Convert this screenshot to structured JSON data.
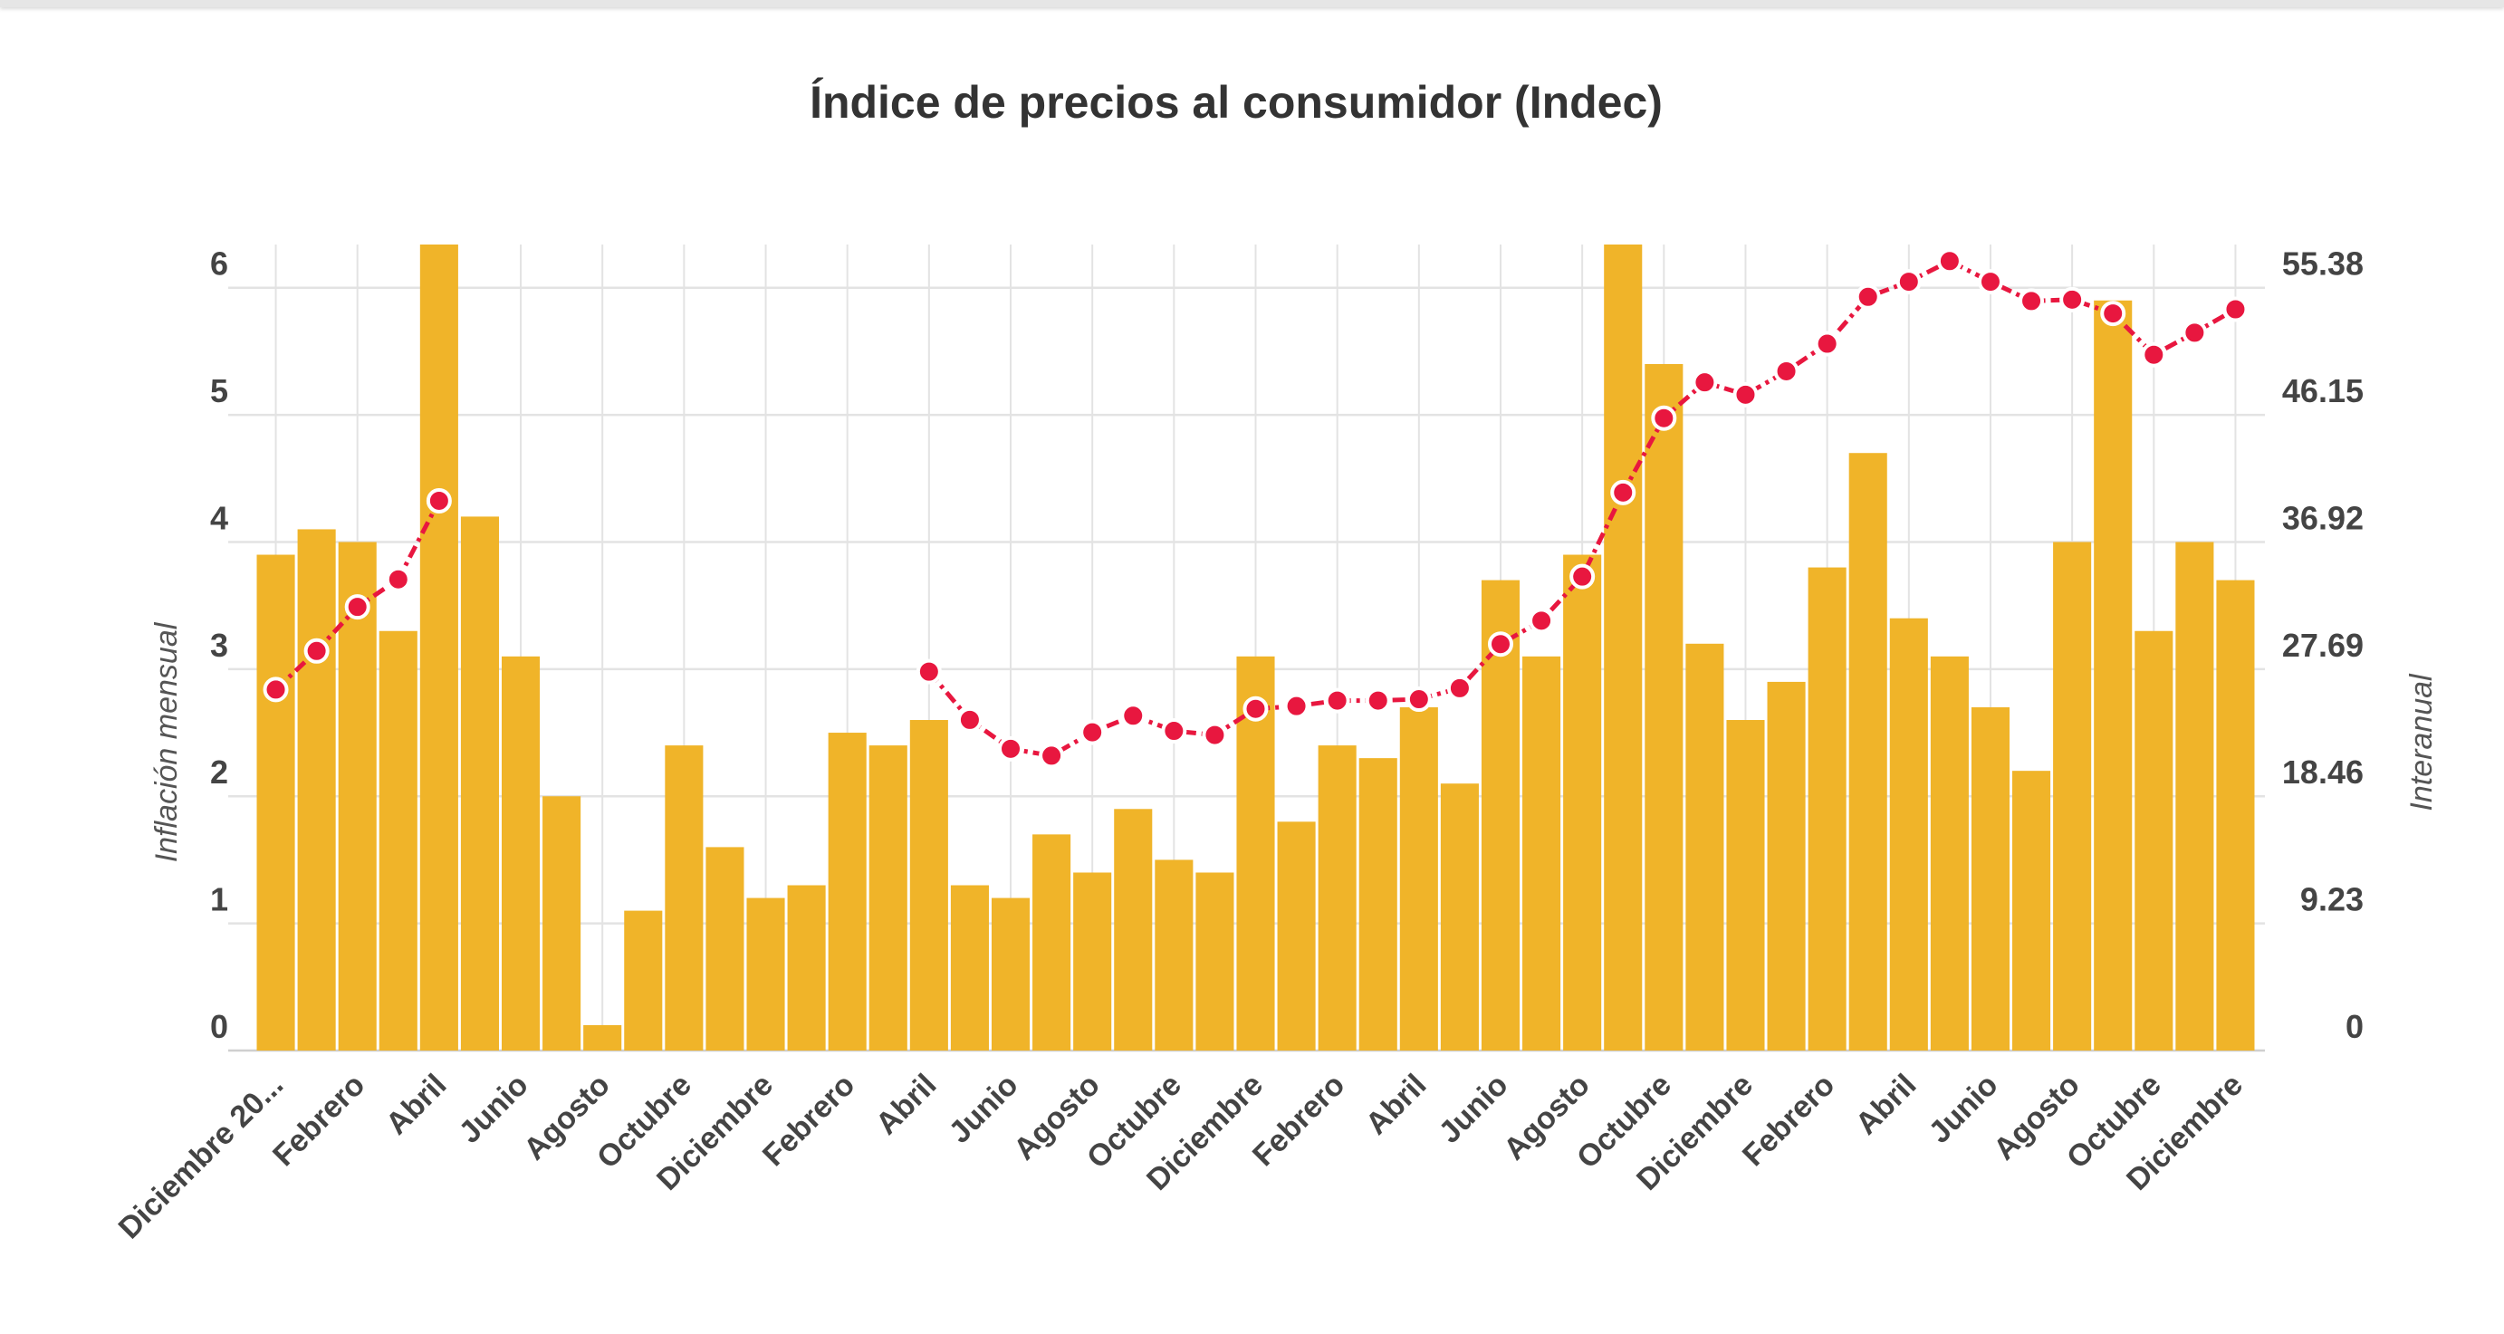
{
  "chart_data": {
    "type": "bar+line",
    "title": "Índice de precios al consumidor (Indec)",
    "ylabel_left": "Inflación mensual",
    "ylabel_right": "Interanual",
    "ylim_left": [
      0,
      6.34
    ],
    "ylim_right": [
      0,
      58.5
    ],
    "yticks_left": [
      "0",
      "1",
      "2",
      "3",
      "4",
      "5",
      "6"
    ],
    "yticks_right": [
      "0",
      "9.23",
      "18.46",
      "27.69",
      "36.92",
      "46.15",
      "55.38"
    ],
    "grid": true,
    "categories": [
      "Diciembre 20...",
      "",
      "Febrero",
      "",
      "Abril",
      "",
      "Junio",
      "",
      "Agosto",
      "",
      "Octubre",
      "",
      "Diciembre",
      "",
      "Febrero",
      "",
      "Abril",
      "",
      "Junio",
      "",
      "Agosto",
      "",
      "Octubre",
      "",
      "Diciembre",
      "",
      "Febrero",
      "",
      "Abril",
      "",
      "Junio",
      "",
      "Agosto",
      "",
      "Octubre",
      "",
      "Diciembre",
      "",
      "Febrero",
      "",
      "Abril",
      "",
      "Junio",
      "",
      "Agosto",
      "",
      "Octubre",
      "",
      "Diciembre"
    ],
    "series": [
      {
        "type": "bar",
        "color": "#f0b429",
        "values": [
          3.9,
          4.1,
          4.0,
          3.3,
          6.7,
          4.2,
          3.1,
          2.0,
          0.2,
          1.1,
          2.4,
          1.6,
          1.2,
          1.3,
          2.5,
          2.4,
          2.6,
          1.3,
          1.2,
          1.7,
          1.4,
          1.9,
          1.5,
          1.4,
          3.1,
          1.8,
          2.4,
          2.3,
          2.7,
          2.1,
          3.7,
          3.1,
          3.9,
          6.5,
          5.4,
          3.2,
          2.6,
          2.9,
          3.8,
          4.7,
          3.4,
          3.1,
          2.7,
          2.2,
          4.0,
          5.9,
          3.3,
          4.0,
          3.7
        ]
      },
      {
        "type": "line",
        "color": "#e8173f",
        "axis": "right",
        "values": [
          26.2,
          29.0,
          32.2,
          34.2,
          39.9,
          null,
          null,
          null,
          null,
          null,
          null,
          null,
          null,
          null,
          null,
          null,
          27.5,
          24.0,
          21.9,
          21.4,
          23.1,
          24.3,
          23.2,
          22.9,
          24.8,
          25.0,
          25.4,
          25.4,
          25.5,
          26.3,
          29.5,
          31.2,
          34.4,
          40.5,
          45.9,
          48.5,
          47.6,
          49.3,
          51.3,
          54.7,
          55.8,
          57.3,
          55.8,
          54.4,
          54.5,
          53.5,
          50.5,
          52.1,
          53.8
        ]
      }
    ]
  }
}
